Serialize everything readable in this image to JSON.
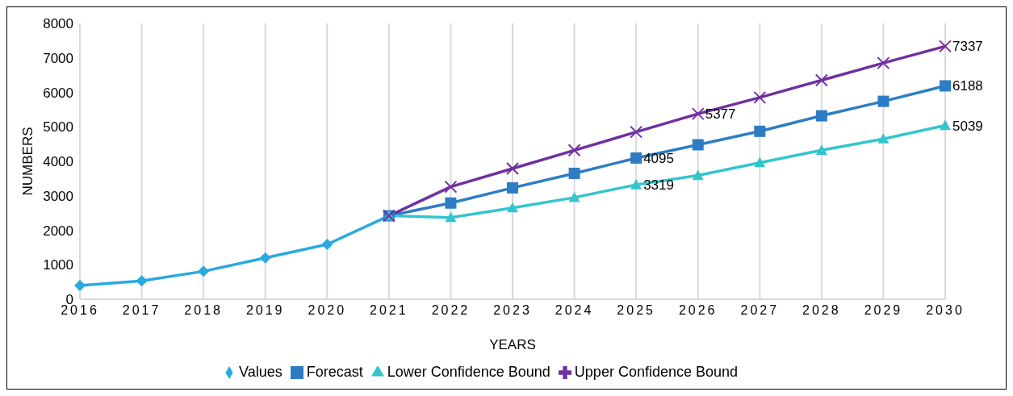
{
  "chart_data": {
    "type": "line",
    "xlabel": "YEARS",
    "ylabel": "NUMBERS",
    "categories": [
      "2016",
      "2017",
      "2018",
      "2019",
      "2020",
      "2021",
      "2022",
      "2023",
      "2024",
      "2025",
      "2026",
      "2027",
      "2028",
      "2029",
      "2030"
    ],
    "series": [
      {
        "name": "Values",
        "color": "#29a9e1",
        "marker": "diamond",
        "values": [
          400,
          530,
          810,
          1200,
          1590,
          2420,
          null,
          null,
          null,
          null,
          null,
          null,
          null,
          null,
          null
        ]
      },
      {
        "name": "Forecast",
        "color": "#2e7dc4",
        "marker": "square",
        "values": [
          null,
          null,
          null,
          null,
          null,
          2420,
          2790,
          3230,
          3650,
          4095,
          4480,
          4870,
          5320,
          5740,
          6188
        ],
        "value_labels": [
          null,
          null,
          null,
          null,
          null,
          null,
          null,
          null,
          null,
          "4095",
          null,
          null,
          null,
          null,
          "6188"
        ]
      },
      {
        "name": "Lower Confidence Bound",
        "color": "#33c5cd",
        "marker": "triangle",
        "values": [
          null,
          null,
          null,
          null,
          null,
          2420,
          2370,
          2650,
          2950,
          3319,
          3590,
          3960,
          4320,
          4650,
          5039
        ],
        "value_labels": [
          null,
          null,
          null,
          null,
          null,
          null,
          null,
          null,
          null,
          "3319",
          null,
          null,
          null,
          null,
          "5039"
        ]
      },
      {
        "name": "Upper Confidence Bound",
        "color": "#7030a0",
        "marker": "cross",
        "values": [
          null,
          null,
          null,
          null,
          null,
          2420,
          3260,
          3790,
          4320,
          4850,
          5377,
          5850,
          6350,
          6850,
          7337
        ],
        "value_labels": [
          null,
          null,
          null,
          null,
          null,
          null,
          null,
          null,
          null,
          null,
          "5377",
          null,
          null,
          null,
          "7337"
        ]
      }
    ],
    "ylim": [
      0,
      8000
    ],
    "yticks": [
      0,
      1000,
      2000,
      3000,
      4000,
      5000,
      6000,
      7000,
      8000
    ],
    "grid": "x",
    "legend": "bottom",
    "line_style": "solid"
  }
}
